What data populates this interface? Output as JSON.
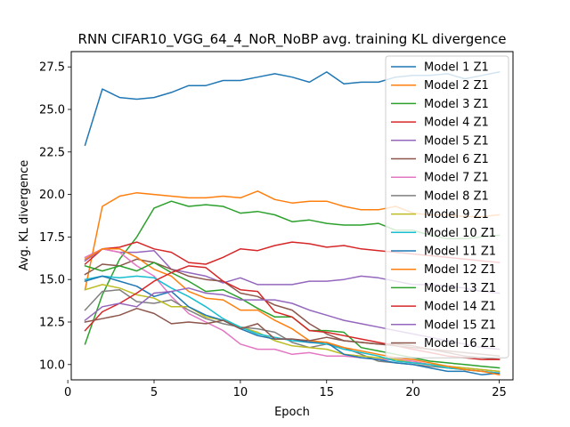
{
  "chart_data": {
    "type": "line",
    "title": "RNN CIFAR10_VGG_64_4_NoR_NoBP avg. training KL divergence",
    "xlabel": "Epoch",
    "ylabel": "Avg. KL divergence",
    "xlim": [
      0.2,
      25.8
    ],
    "ylim": [
      9.1,
      28.4
    ],
    "xticks": [
      0,
      5,
      10,
      15,
      20,
      25
    ],
    "yticks": [
      10.0,
      12.5,
      15.0,
      17.5,
      20.0,
      22.5,
      25.0,
      27.5
    ],
    "ytick_labels": [
      "10.0",
      "12.5",
      "15.0",
      "17.5",
      "20.0",
      "22.5",
      "25.0",
      "27.5"
    ],
    "grid": false,
    "legend_position": "top-right",
    "x": [
      1,
      2,
      3,
      4,
      5,
      6,
      7,
      8,
      9,
      10,
      11,
      12,
      13,
      14,
      15,
      16,
      17,
      18,
      19,
      20,
      21,
      22,
      23,
      24,
      25
    ],
    "series": [
      {
        "name": "Model 1 Z1",
        "color": "#1f77b4",
        "values": [
          22.9,
          26.2,
          25.7,
          25.6,
          25.7,
          26.0,
          26.4,
          26.4,
          26.7,
          26.7,
          26.9,
          27.1,
          26.9,
          26.6,
          27.2,
          26.5,
          26.6,
          26.6,
          26.9,
          27.0,
          27.0,
          27.1,
          26.8,
          27.0,
          27.2
        ]
      },
      {
        "name": "Model 2 Z1",
        "color": "#ff7f0e",
        "values": [
          14.4,
          19.3,
          19.9,
          20.1,
          20.0,
          19.9,
          19.8,
          19.8,
          19.9,
          19.8,
          20.2,
          19.7,
          19.5,
          19.6,
          19.6,
          19.3,
          19.1,
          19.1,
          19.3,
          18.9,
          18.8,
          18.8,
          18.7,
          18.7,
          18.8
        ]
      },
      {
        "name": "Model 3 Z1",
        "color": "#2ca02c",
        "values": [
          11.2,
          14.1,
          16.2,
          17.5,
          19.2,
          19.6,
          19.3,
          19.4,
          19.3,
          18.9,
          19.0,
          18.8,
          18.4,
          18.5,
          18.3,
          18.2,
          18.2,
          18.3,
          17.9,
          17.9,
          17.6,
          17.4,
          17.4,
          17.5,
          17.6
        ]
      },
      {
        "name": "Model 4 Z1",
        "color": "#d62728",
        "values": [
          15.9,
          16.8,
          16.9,
          17.2,
          16.8,
          16.6,
          16.0,
          15.9,
          16.3,
          16.8,
          16.7,
          17.0,
          17.2,
          17.1,
          16.9,
          17.0,
          16.8,
          16.7,
          16.6,
          16.5,
          16.4,
          16.3,
          16.2,
          16.1,
          16.0
        ]
      },
      {
        "name": "Model 5 Z1",
        "color": "#9467bd",
        "values": [
          16.1,
          16.8,
          16.6,
          16.6,
          16.7,
          15.6,
          15.4,
          15.2,
          14.8,
          15.1,
          14.7,
          14.7,
          14.7,
          14.9,
          14.9,
          15.0,
          15.2,
          15.1,
          14.9,
          14.7,
          14.7,
          14.6,
          14.5,
          14.3,
          14.2
        ]
      },
      {
        "name": "Model 6 Z1",
        "color": "#8c564b",
        "values": [
          15.3,
          15.9,
          15.8,
          16.2,
          16.0,
          15.6,
          15.2,
          15.0,
          14.9,
          14.2,
          14.0,
          13.5,
          13.2,
          12.4,
          11.8,
          11.4,
          11.3,
          11.2,
          11.2,
          11.1,
          10.9,
          10.7,
          10.5,
          10.4,
          10.3
        ]
      },
      {
        "name": "Model 7 Z1",
        "color": "#e377c2",
        "values": [
          16.3,
          16.8,
          16.6,
          15.8,
          15.2,
          14.0,
          13.0,
          12.5,
          12.0,
          11.2,
          10.9,
          10.9,
          10.6,
          10.7,
          10.5,
          10.5,
          10.4,
          10.3,
          10.3,
          10.2,
          10.0,
          9.9,
          9.8,
          9.7,
          9.6
        ]
      },
      {
        "name": "Model 8 Z1",
        "color": "#7f7f7f",
        "values": [
          13.2,
          14.3,
          14.4,
          13.7,
          13.6,
          13.8,
          13.2,
          12.7,
          12.4,
          12.2,
          12.1,
          11.9,
          11.3,
          11.0,
          11.2,
          11.0,
          10.6,
          10.2,
          10.1,
          10.0,
          9.9,
          9.8,
          9.7,
          9.6,
          9.5
        ]
      },
      {
        "name": "Model 9 Z1",
        "color": "#bcbd22",
        "values": [
          14.4,
          14.7,
          14.5,
          14.1,
          13.9,
          13.4,
          13.4,
          12.8,
          12.6,
          12.2,
          11.9,
          11.4,
          11.1,
          11.0,
          10.9,
          10.6,
          10.5,
          10.4,
          10.3,
          10.1,
          10.0,
          9.9,
          9.8,
          9.7,
          9.6
        ]
      },
      {
        "name": "Model 10 Z1",
        "color": "#17becf",
        "values": [
          15.0,
          15.2,
          15.1,
          15.2,
          15.1,
          14.5,
          14.0,
          13.4,
          12.7,
          12.2,
          11.8,
          11.6,
          11.4,
          11.3,
          11.2,
          10.9,
          10.7,
          10.5,
          10.2,
          10.1,
          10.0,
          9.8,
          9.7,
          9.6,
          9.5
        ]
      },
      {
        "name": "Model 11 Z1",
        "color": "#1f77b4",
        "values": [
          14.9,
          15.2,
          14.9,
          14.6,
          14.0,
          14.3,
          13.4,
          12.9,
          12.6,
          12.1,
          11.7,
          11.5,
          11.5,
          11.3,
          11.3,
          10.6,
          10.4,
          10.3,
          10.1,
          10.0,
          9.8,
          9.6,
          9.6,
          9.4,
          9.5
        ]
      },
      {
        "name": "Model 12 Z1",
        "color": "#ff7f0e",
        "values": [
          16.2,
          16.8,
          16.8,
          16.3,
          15.6,
          15.2,
          14.3,
          13.9,
          13.8,
          13.2,
          13.2,
          12.6,
          12.1,
          11.4,
          11.3,
          11.0,
          10.8,
          10.6,
          10.4,
          10.3,
          10.1,
          9.9,
          9.7,
          9.6,
          9.4
        ]
      },
      {
        "name": "Model 13 Z1",
        "color": "#2ca02c",
        "values": [
          15.8,
          15.5,
          15.8,
          15.5,
          16.0,
          15.4,
          14.9,
          14.3,
          14.4,
          13.9,
          13.3,
          12.8,
          12.8,
          12.0,
          12.0,
          11.9,
          11.0,
          10.8,
          10.6,
          10.4,
          10.2,
          10.1,
          10.0,
          9.9,
          9.8
        ]
      },
      {
        "name": "Model 14 Z1",
        "color": "#d62728",
        "values": [
          12.0,
          13.1,
          13.6,
          14.2,
          14.9,
          15.4,
          15.8,
          15.7,
          14.9,
          14.4,
          14.3,
          13.1,
          12.8,
          12.0,
          11.9,
          11.7,
          11.5,
          11.3,
          11.1,
          10.9,
          10.7,
          10.5,
          10.4,
          10.3,
          10.3
        ]
      },
      {
        "name": "Model 15 Z1",
        "color": "#9467bd",
        "values": [
          12.6,
          13.4,
          13.6,
          13.4,
          14.2,
          14.3,
          14.5,
          14.2,
          14.1,
          13.8,
          13.8,
          13.8,
          13.6,
          13.2,
          12.9,
          12.6,
          12.4,
          12.2,
          12.0,
          11.8,
          11.6,
          11.4,
          11.2,
          11.0,
          10.9
        ]
      },
      {
        "name": "Model 16 Z1",
        "color": "#8c564b",
        "values": [
          12.5,
          12.7,
          12.9,
          13.3,
          13.0,
          12.4,
          12.5,
          12.4,
          12.6,
          12.1,
          12.4,
          11.5,
          11.5,
          11.4,
          11.6,
          11.4,
          11.3,
          11.2,
          11.1,
          11.0,
          10.9,
          10.8,
          10.7,
          10.6,
          10.5
        ]
      }
    ]
  }
}
